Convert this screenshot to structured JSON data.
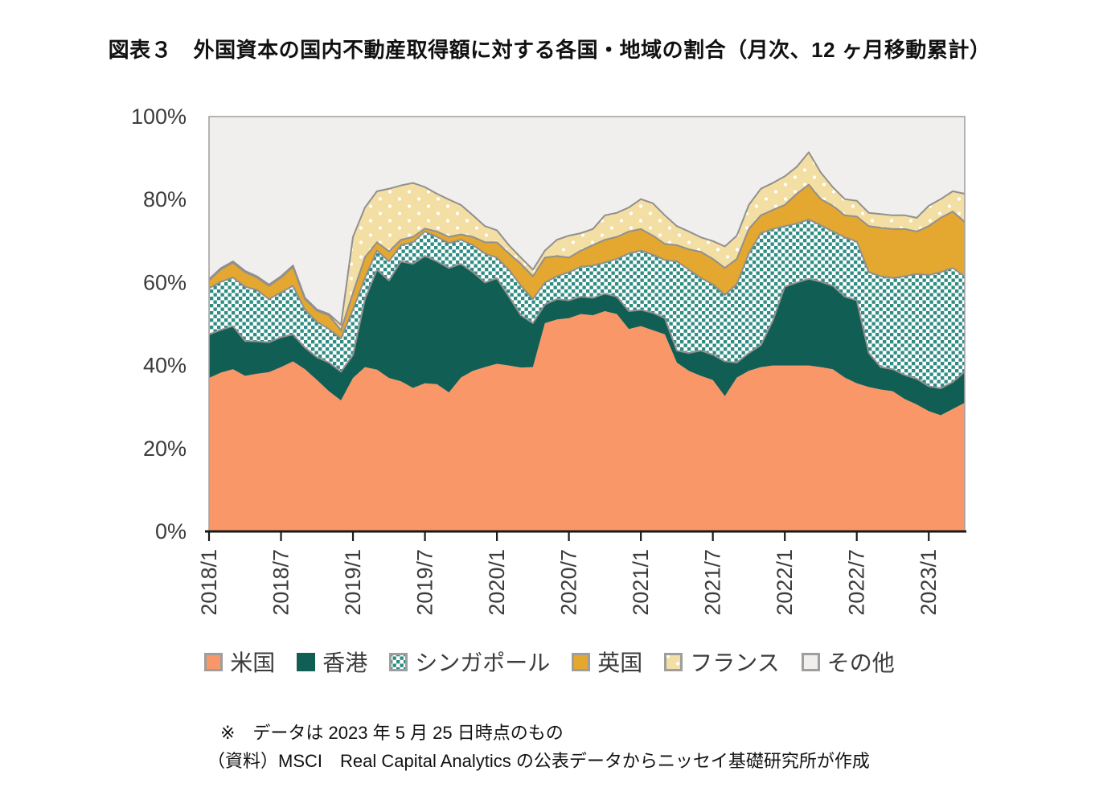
{
  "title": "図表３　外国資本の国内不動産取得額に対する各国・地域の割合（月次、12 ヶ月移動累計）",
  "footnotes": {
    "note": "※　データは 2023 年 5 月 25 日時点のもの",
    "source": "（資料）MSCI　Real Capital Analytics の公表データからニッセイ基礎研究所が作成"
  },
  "colors": {
    "us_orange": "#F99768",
    "hongkong_teal": "#115E54",
    "singapore_pattern_teal": "#2E8C82",
    "uk_gold": "#E4A72F",
    "france_cream": "#F3DEA3",
    "others_gray": "#F0EFED",
    "boundary_stroke": "#909090",
    "frame": "#A3A3A3",
    "axis": "#1A1A1A",
    "text": "#3C3C3C",
    "swatch_border": "#9E9E9E"
  },
  "chart_data": {
    "type": "area",
    "stacked": true,
    "unit": "%",
    "ylim": [
      0,
      100
    ],
    "grid": false,
    "legend_position": "bottom",
    "y_ticks": [
      "0%",
      "20%",
      "40%",
      "60%",
      "80%",
      "100%"
    ],
    "x_tick_labels": [
      "2018/1",
      "2018/7",
      "2019/1",
      "2019/7",
      "2020/1",
      "2020/7",
      "2021/1",
      "2021/7",
      "2022/1",
      "2022/7",
      "2023/1"
    ],
    "x": [
      "2018/1",
      "2018/2",
      "2018/3",
      "2018/4",
      "2018/5",
      "2018/6",
      "2018/7",
      "2018/8",
      "2018/9",
      "2018/10",
      "2018/11",
      "2018/12",
      "2019/1",
      "2019/2",
      "2019/3",
      "2019/4",
      "2019/5",
      "2019/6",
      "2019/7",
      "2019/8",
      "2019/9",
      "2019/10",
      "2019/11",
      "2019/12",
      "2020/1",
      "2020/2",
      "2020/3",
      "2020/4",
      "2020/5",
      "2020/6",
      "2020/7",
      "2020/8",
      "2020/9",
      "2020/10",
      "2020/11",
      "2020/12",
      "2021/1",
      "2021/2",
      "2021/3",
      "2021/4",
      "2021/5",
      "2021/6",
      "2021/7",
      "2021/8",
      "2021/9",
      "2021/10",
      "2021/11",
      "2021/12",
      "2022/1",
      "2022/2",
      "2022/3",
      "2022/4",
      "2022/5",
      "2022/6",
      "2022/7",
      "2022/8",
      "2022/9",
      "2022/10",
      "2022/11",
      "2022/12",
      "2023/1",
      "2023/2",
      "2023/3",
      "2023/4"
    ],
    "series": [
      {
        "key": "us",
        "name": "米国",
        "fill": "#F99768",
        "values": [
          37.0,
          38.3,
          39.1,
          37.5,
          38.0,
          38.4,
          39.6,
          41.0,
          39.1,
          36.5,
          33.8,
          31.6,
          37.0,
          39.6,
          39.0,
          37.0,
          36.2,
          34.6,
          35.7,
          35.5,
          33.5,
          37.1,
          38.7,
          39.6,
          40.4,
          40.0,
          39.5,
          39.6,
          50.2,
          51.1,
          51.4,
          52.4,
          52.1,
          53.1,
          52.4,
          48.8,
          49.5,
          48.5,
          47.5,
          40.7,
          38.7,
          37.5,
          36.5,
          32.6,
          37.1,
          38.7,
          39.6,
          40.0,
          40.0,
          40.0,
          40.0,
          39.6,
          39.1,
          37.1,
          35.7,
          34.8,
          34.2,
          33.8,
          31.9,
          30.6,
          29.0,
          28.0,
          29.5,
          31.0
        ]
      },
      {
        "key": "hongkong",
        "name": "香港",
        "fill": "#115E54",
        "swatch_border": "#115E54",
        "values": [
          10.5,
          10.3,
          10.4,
          8.4,
          7.8,
          7.2,
          7.2,
          6.5,
          5.2,
          5.5,
          6.9,
          6.9,
          5.5,
          16.4,
          24.1,
          23.5,
          28.9,
          29.9,
          30.7,
          29.6,
          30.0,
          27.4,
          23.8,
          20.4,
          20.6,
          16.6,
          12.6,
          10.6,
          4.5,
          4.9,
          4.3,
          4.2,
          4.2,
          4.2,
          4.2,
          4.3,
          3.9,
          4.2,
          3.9,
          2.9,
          4.3,
          6.1,
          6.1,
          8.4,
          3.6,
          4.3,
          5.3,
          10.8,
          19.0,
          20.0,
          20.9,
          20.6,
          20.1,
          19.5,
          20.0,
          8.2,
          5.4,
          5.3,
          5.8,
          6.2,
          6.0,
          6.5,
          6.5,
          7.5
        ]
      },
      {
        "key": "singapore",
        "name": "シンガポール",
        "pattern": "sg",
        "fill": "#2E8C82",
        "values": [
          11.1,
          11.6,
          11.7,
          13.1,
          12.4,
          10.4,
          10.8,
          11.7,
          9.1,
          8.5,
          8.1,
          8.0,
          11.0,
          5.1,
          4.6,
          4.6,
          3.9,
          5.2,
          5.9,
          5.9,
          6.0,
          5.8,
          6.5,
          7.0,
          5.0,
          6.5,
          7.1,
          5.8,
          5.3,
          5.5,
          6.8,
          7.2,
          7.8,
          7.5,
          9.1,
          13.9,
          14.3,
          14.0,
          14.0,
          21.5,
          20.1,
          17.5,
          17.0,
          16.0,
          18.9,
          24.0,
          27.0,
          22.1,
          14.6,
          14.2,
          14.3,
          13.6,
          13.1,
          14.3,
          14.2,
          19.5,
          21.9,
          22.0,
          23.8,
          25.3,
          26.8,
          28.0,
          27.5,
          23.0
        ]
      },
      {
        "key": "uk",
        "name": "英国",
        "fill": "#E4A72F",
        "values": [
          1.9,
          3.0,
          3.6,
          3.5,
          3.0,
          3.2,
          3.6,
          4.6,
          2.6,
          2.7,
          3.3,
          2.0,
          4.0,
          5.0,
          2.0,
          2.4,
          1.3,
          1.3,
          0.7,
          1.3,
          1.5,
          1.3,
          2.0,
          2.7,
          3.7,
          3.9,
          5.3,
          5.5,
          6.0,
          4.9,
          3.5,
          3.9,
          4.9,
          5.5,
          5.3,
          5.3,
          5.2,
          4.6,
          3.9,
          3.9,
          4.9,
          6.3,
          6.1,
          6.5,
          6.1,
          5.9,
          4.3,
          4.6,
          5.1,
          7.2,
          8.4,
          6.3,
          6.2,
          5.3,
          6.0,
          11.1,
          11.7,
          11.8,
          11.4,
          10.2,
          11.8,
          13.1,
          13.6,
          13.1
        ]
      },
      {
        "key": "france",
        "name": "フランス",
        "pattern": "fr",
        "fill": "#F3DEA3",
        "values": [
          0.3,
          0.3,
          0.3,
          0.3,
          0.3,
          0.3,
          0.3,
          0.3,
          0.3,
          0.3,
          0.3,
          1.3,
          13.5,
          12.0,
          12.3,
          15.1,
          13.1,
          13.0,
          10.0,
          9.1,
          9.0,
          7.1,
          5.2,
          3.9,
          2.9,
          2.0,
          1.5,
          1.6,
          1.7,
          3.9,
          5.3,
          4.2,
          3.9,
          5.9,
          5.8,
          5.8,
          7.2,
          7.8,
          6.9,
          4.6,
          4.3,
          3.5,
          4.3,
          5.2,
          5.6,
          5.8,
          6.4,
          6.5,
          6.9,
          6.5,
          7.8,
          6.4,
          4.5,
          3.9,
          3.8,
          3.2,
          3.3,
          3.3,
          3.3,
          3.3,
          4.9,
          4.5,
          4.9,
          6.8
        ]
      },
      {
        "key": "others",
        "name": "その他",
        "fill": "#F0EFED",
        "values": [
          39.2,
          36.5,
          34.9,
          37.2,
          38.5,
          40.5,
          38.5,
          35.9,
          43.7,
          46.5,
          47.6,
          50.2,
          29.0,
          21.9,
          18.0,
          17.4,
          16.6,
          16.0,
          17.0,
          18.6,
          20.0,
          21.3,
          23.8,
          26.4,
          27.4,
          31.0,
          34.0,
          36.9,
          32.3,
          29.7,
          28.7,
          28.1,
          27.1,
          23.8,
          23.2,
          21.9,
          19.9,
          20.9,
          23.8,
          26.4,
          27.7,
          29.1,
          30.0,
          31.3,
          28.7,
          21.3,
          17.4,
          16.0,
          14.4,
          12.1,
          8.6,
          13.5,
          17.0,
          19.9,
          20.3,
          23.2,
          23.5,
          23.8,
          23.8,
          24.4,
          21.5,
          19.9,
          18.0,
          18.6
        ]
      }
    ]
  }
}
